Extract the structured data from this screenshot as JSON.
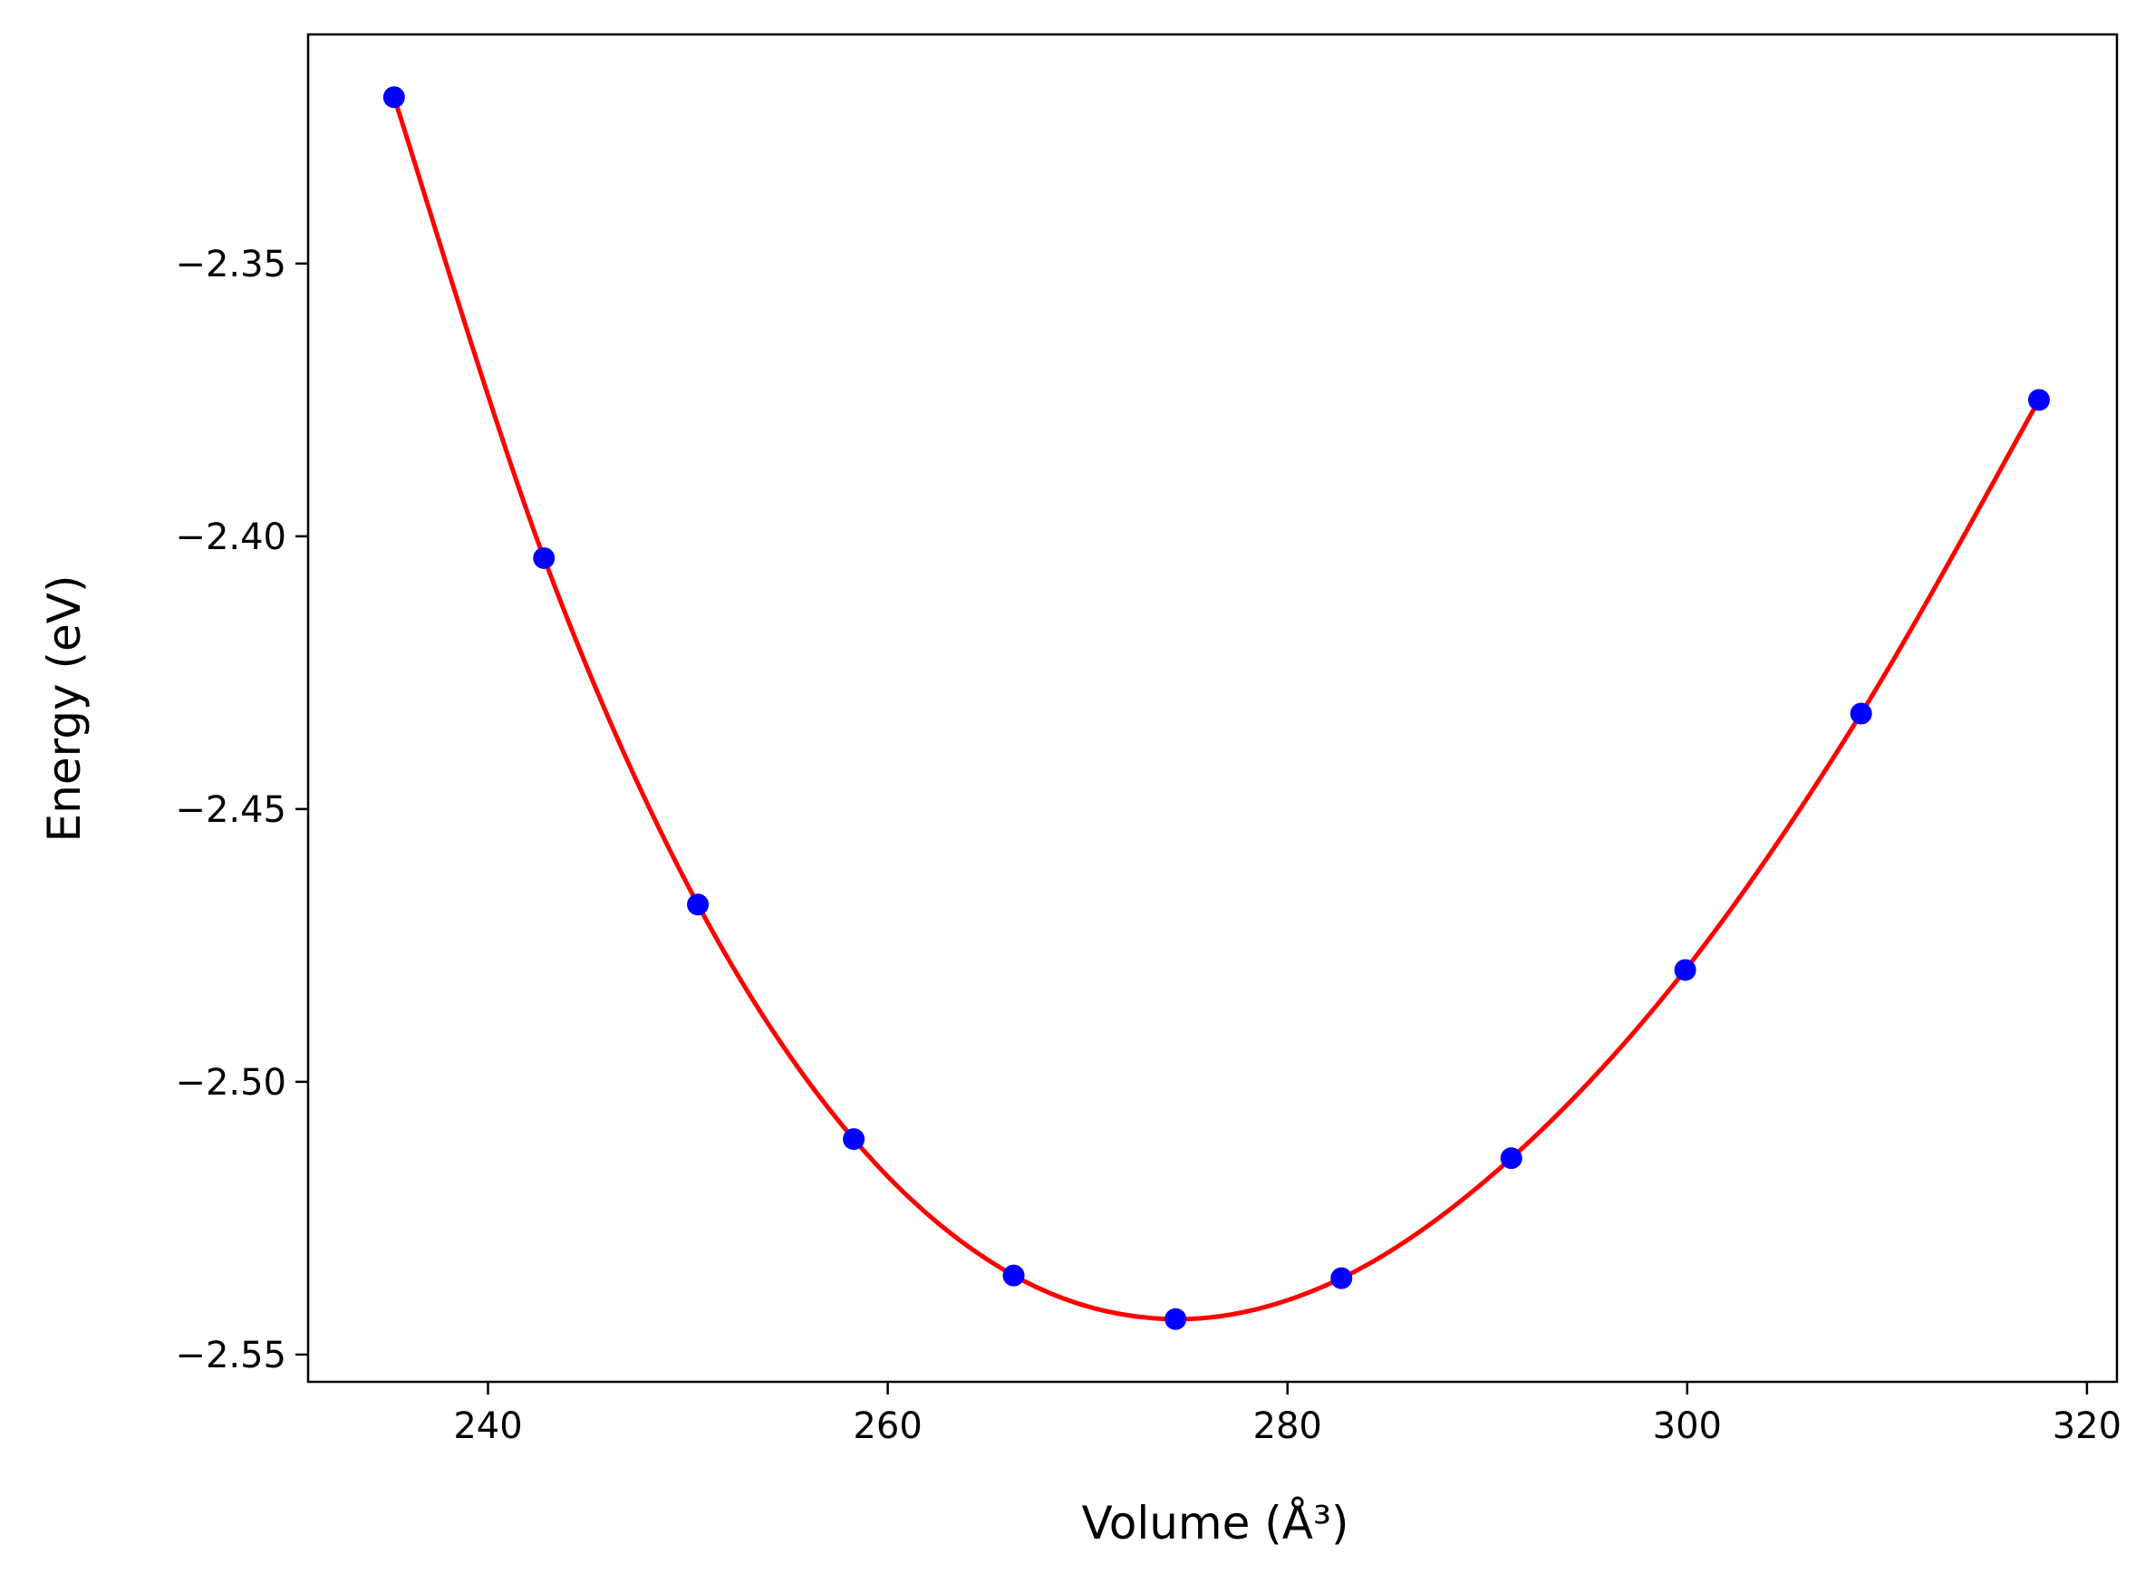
{
  "chart_data": {
    "type": "line",
    "xlabel": "Volume (Å³)",
    "ylabel": "Energy (eV)",
    "xlim": [
      231,
      321.5
    ],
    "ylim": [
      -2.555,
      -2.308
    ],
    "x_ticks": [
      240,
      260,
      280,
      300,
      320
    ],
    "y_ticks": [
      -2.35,
      -2.4,
      -2.45,
      -2.5,
      -2.55
    ],
    "x_tick_labels": [
      "240",
      "260",
      "280",
      "300",
      "320"
    ],
    "y_tick_labels": [
      "−2.35",
      "−2.40",
      "−2.45",
      "−2.50",
      "−2.55"
    ],
    "grid": false,
    "series": [
      {
        "kind": "scatter",
        "marker": "circle",
        "color": "#0000ff",
        "x": [
          235.3,
          242.8,
          250.5,
          258.3,
          266.3,
          274.4,
          282.7,
          291.2,
          299.9,
          308.7,
          317.6
        ],
        "y": [
          -2.3195,
          -2.404,
          -2.4675,
          -2.5105,
          -2.5355,
          -2.5435,
          -2.536,
          -2.514,
          -2.4795,
          -2.4325,
          -2.375
        ]
      },
      {
        "kind": "line",
        "color": "#ff0000",
        "x": [
          235.3,
          242.8,
          250.5,
          258.3,
          266.3,
          274.4,
          282.7,
          291.2,
          299.9,
          308.7,
          317.6
        ],
        "y": [
          -2.3195,
          -2.404,
          -2.4675,
          -2.5105,
          -2.5355,
          -2.5435,
          -2.536,
          -2.514,
          -2.4795,
          -2.4325,
          -2.375
        ]
      }
    ]
  }
}
